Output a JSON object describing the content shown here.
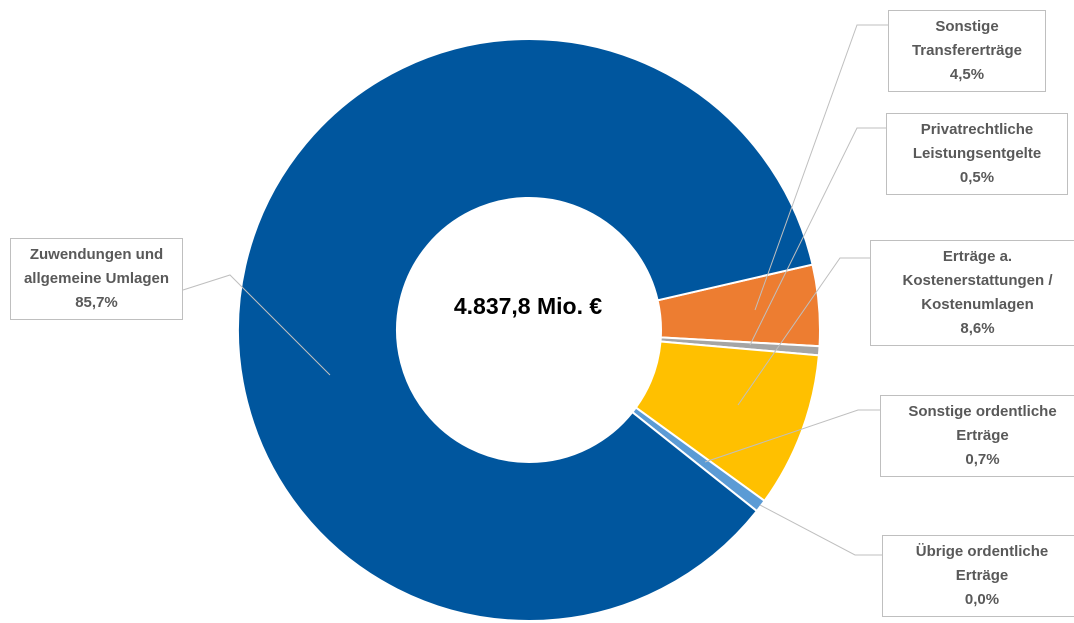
{
  "chart_data": {
    "type": "donut",
    "title": "4.837,8 Mio. €",
    "categories": [
      "Sonstige Transfererträge",
      "Privatrechtliche Leistungsentgelte",
      "Erträge a. Kostenerstattungen / Kostenumlagen",
      "Sonstige ordentliche Erträge",
      "Übrige ordentliche Erträge",
      "Zuwendungen und allgemeine Umlagen"
    ],
    "values": [
      4.5,
      0.5,
      8.6,
      0.7,
      0.0,
      85.7
    ],
    "value_labels": [
      "4,5%",
      "0,5%",
      "8,6%",
      "0,7%",
      "0,0%",
      "85,7%"
    ],
    "colors": [
      "#ed7d31",
      "#a5a5a5",
      "#ffc000",
      "#5b9bd5",
      "#264478",
      "#00569e"
    ]
  }
}
